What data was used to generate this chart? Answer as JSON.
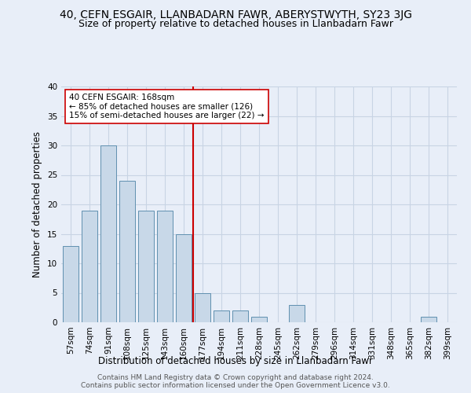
{
  "title": "40, CEFN ESGAIR, LLANBADARN FAWR, ABERYSTWYTH, SY23 3JG",
  "subtitle": "Size of property relative to detached houses in Llanbadarn Fawr",
  "xlabel": "Distribution of detached houses by size in Llanbadarn Fawr",
  "ylabel": "Number of detached properties",
  "categories": [
    "57sqm",
    "74sqm",
    "91sqm",
    "108sqm",
    "125sqm",
    "143sqm",
    "160sqm",
    "177sqm",
    "194sqm",
    "211sqm",
    "228sqm",
    "245sqm",
    "262sqm",
    "279sqm",
    "296sqm",
    "314sqm",
    "331sqm",
    "348sqm",
    "365sqm",
    "382sqm",
    "399sqm"
  ],
  "values": [
    13,
    19,
    30,
    24,
    19,
    19,
    15,
    5,
    2,
    2,
    1,
    0,
    3,
    0,
    0,
    0,
    0,
    0,
    0,
    1,
    0
  ],
  "bar_color": "#c8d8e8",
  "bar_edge_color": "#6090b0",
  "vline_color": "#cc0000",
  "highlight_bin_index": 6,
  "annotation_text": "40 CEFN ESGAIR: 168sqm\n← 85% of detached houses are smaller (126)\n15% of semi-detached houses are larger (22) →",
  "annotation_box_color": "#ffffff",
  "annotation_box_edge_color": "#cc0000",
  "ylim": [
    0,
    40
  ],
  "yticks": [
    0,
    5,
    10,
    15,
    20,
    25,
    30,
    35,
    40
  ],
  "grid_color": "#c8d4e4",
  "bg_color": "#e8eef8",
  "footer_text": "Contains HM Land Registry data © Crown copyright and database right 2024.\nContains public sector information licensed under the Open Government Licence v3.0.",
  "title_fontsize": 10,
  "subtitle_fontsize": 9,
  "xlabel_fontsize": 8.5,
  "ylabel_fontsize": 8.5,
  "tick_fontsize": 7.5,
  "annotation_fontsize": 7.5,
  "footer_fontsize": 6.5
}
